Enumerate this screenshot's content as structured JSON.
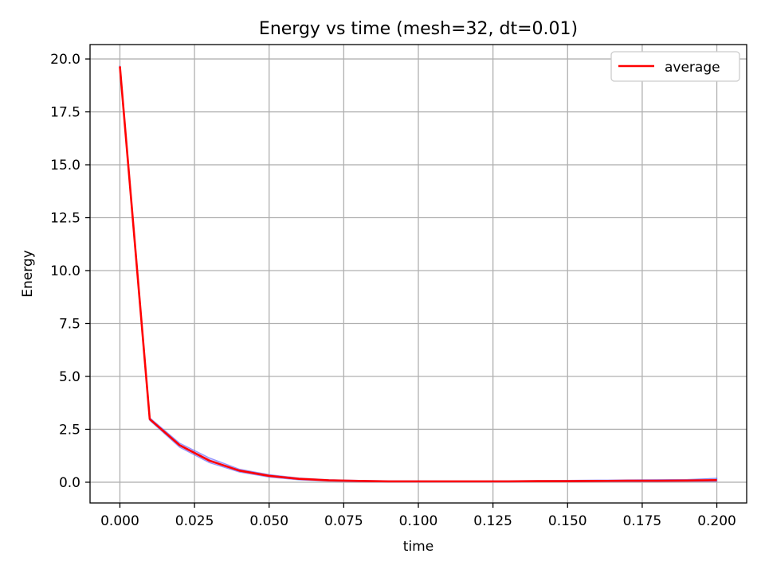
{
  "chart_data": {
    "type": "line",
    "title": "Energy vs time (mesh=32, dt=0.01)",
    "xlabel": "time",
    "ylabel": "Energy",
    "xlim": [
      -0.01,
      0.21
    ],
    "ylim": [
      -0.98,
      20.68
    ],
    "xticks": [
      0.0,
      0.025,
      0.05,
      0.075,
      0.1,
      0.125,
      0.15,
      0.175,
      0.2
    ],
    "xtick_labels": [
      "0.000",
      "0.025",
      "0.050",
      "0.075",
      "0.100",
      "0.125",
      "0.150",
      "0.175",
      "0.200"
    ],
    "yticks": [
      0.0,
      2.5,
      5.0,
      7.5,
      10.0,
      12.5,
      15.0,
      17.5,
      20.0
    ],
    "ytick_labels": [
      "0.0",
      "2.5",
      "5.0",
      "7.5",
      "10.0",
      "12.5",
      "15.0",
      "17.5",
      "20.0"
    ],
    "grid": true,
    "legend_position": "top-right",
    "x": [
      0.0,
      0.01,
      0.02,
      0.03,
      0.04,
      0.05,
      0.06,
      0.07,
      0.08,
      0.09,
      0.1,
      0.11,
      0.12,
      0.13,
      0.14,
      0.15,
      0.16,
      0.17,
      0.18,
      0.19,
      0.2
    ],
    "band": {
      "color": "#5b5bff",
      "upper": [
        19.7,
        3.05,
        1.85,
        1.15,
        0.62,
        0.36,
        0.2,
        0.12,
        0.09,
        0.07,
        0.07,
        0.06,
        0.06,
        0.07,
        0.08,
        0.09,
        0.1,
        0.11,
        0.12,
        0.13,
        0.19
      ],
      "lower": [
        19.6,
        2.92,
        1.65,
        0.92,
        0.48,
        0.24,
        0.11,
        0.05,
        0.02,
        0.01,
        0.01,
        0.01,
        0.01,
        0.01,
        0.02,
        0.02,
        0.03,
        0.03,
        0.03,
        0.04,
        0.04
      ]
    },
    "series": [
      {
        "name": "average",
        "color": "#ff0000",
        "values": [
          19.65,
          2.98,
          1.75,
          1.02,
          0.55,
          0.3,
          0.16,
          0.09,
          0.06,
          0.04,
          0.04,
          0.04,
          0.04,
          0.04,
          0.05,
          0.05,
          0.06,
          0.07,
          0.07,
          0.08,
          0.1
        ]
      }
    ]
  }
}
